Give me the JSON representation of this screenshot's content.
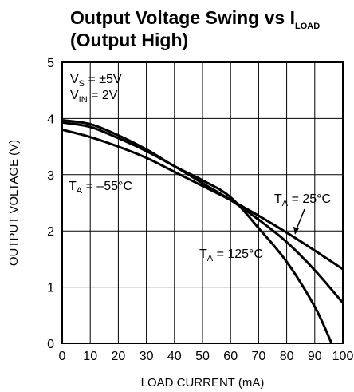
{
  "chart_data": {
    "type": "line",
    "title_line1_main": "Output Voltage Swing vs I",
    "title_line1_sub": "LOAD",
    "title_line2": "(Output High)",
    "xlabel": "LOAD CURRENT (mA)",
    "ylabel": "OUTPUT VOLTAGE (V)",
    "xlim": [
      0,
      100
    ],
    "ylim": [
      0,
      5
    ],
    "x_ticks": [
      "0",
      "10",
      "20",
      "30",
      "40",
      "50",
      "60",
      "70",
      "80",
      "90",
      "100"
    ],
    "y_ticks": [
      "0",
      "1",
      "2",
      "3",
      "4",
      "5"
    ],
    "grid": true,
    "conditions": [
      {
        "main": "V",
        "sub": "S",
        "rest": " = ±5V"
      },
      {
        "main": "V",
        "sub": "IN",
        "rest": " = 2V"
      }
    ],
    "series": [
      {
        "name": "T_A = -55°C",
        "label_main": "T",
        "label_sub": "A",
        "label_rest": " = –55°C",
        "x": [
          0,
          10,
          20,
          30,
          40,
          50,
          60,
          70,
          80,
          90,
          100
        ],
        "y": [
          3.8,
          3.67,
          3.5,
          3.3,
          3.05,
          2.8,
          2.55,
          2.27,
          1.97,
          1.65,
          1.32
        ]
      },
      {
        "name": "T_A = 25°C",
        "label_main": "T",
        "label_sub": "A",
        "label_rest": " = 25°C",
        "x": [
          0,
          10,
          20,
          30,
          40,
          50,
          60,
          70,
          80,
          90,
          100
        ],
        "y": [
          3.93,
          3.85,
          3.65,
          3.42,
          3.15,
          2.85,
          2.55,
          2.2,
          1.8,
          1.3,
          0.72
        ]
      },
      {
        "name": "T_A = 125°C",
        "label_main": "T",
        "label_sub": "A",
        "label_rest": " = 125°C",
        "x": [
          0,
          10,
          20,
          30,
          40,
          50,
          60,
          70,
          80,
          90,
          96
        ],
        "y": [
          3.97,
          3.9,
          3.7,
          3.45,
          3.15,
          2.9,
          2.6,
          2.05,
          1.45,
          0.65,
          0.0
        ]
      }
    ]
  }
}
